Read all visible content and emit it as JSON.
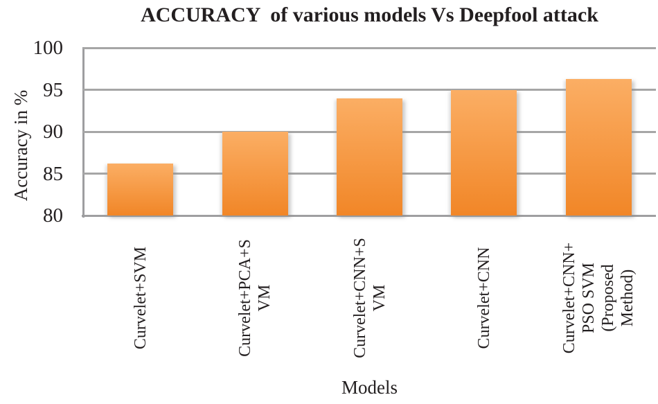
{
  "chart_data": {
    "type": "bar",
    "title": "ACCURACY  of various models Vs Deepfool attack",
    "xlabel": "Models",
    "ylabel": "Accuracy in %",
    "categories": [
      "Curvelet+SVM",
      "Curvelet+PCA+S\nVM",
      "Curvelet+CNN+S\nVM",
      "Curvelet+CNN",
      "Curvelet+CNN+\nPSO SVM\n(Proposed\nMethod)"
    ],
    "values": [
      86.2,
      90,
      94,
      95,
      96.3
    ],
    "ylim": [
      80,
      100
    ],
    "yticks": [
      100,
      95,
      90,
      85,
      80
    ],
    "grid": true,
    "legend_position": "none",
    "colors": {
      "bar_top": "#FBAE64",
      "bar_bottom": "#F18627",
      "gridline": "#A6A6A6",
      "axis": "#9E9EA0",
      "text": "#231F20"
    }
  }
}
